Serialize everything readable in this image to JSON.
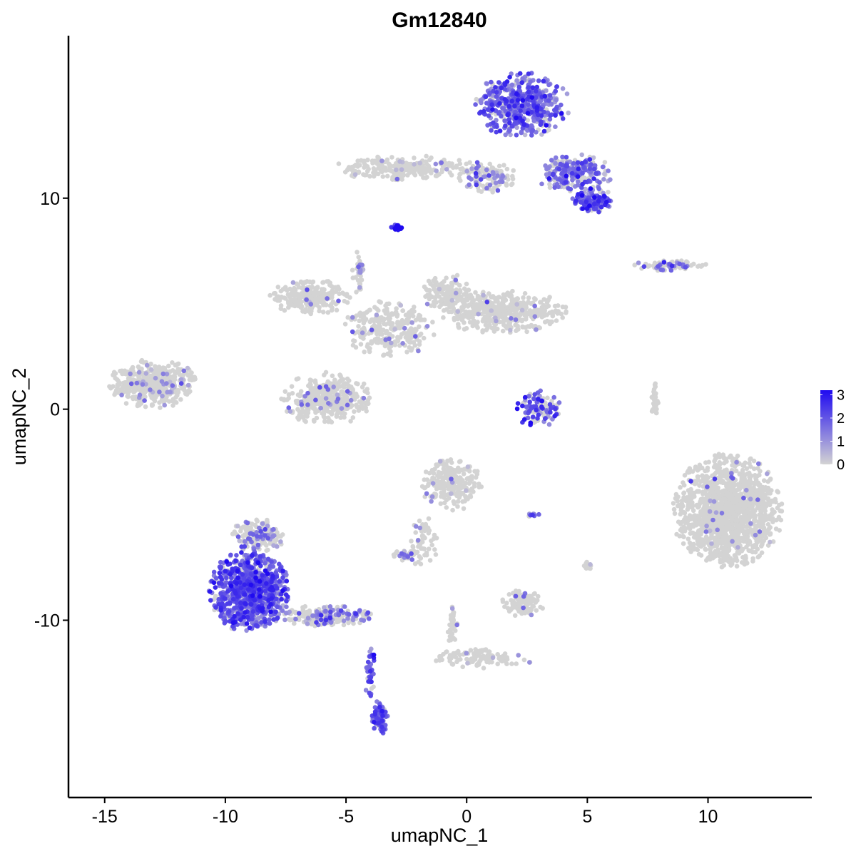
{
  "chart_data": {
    "type": "scatter",
    "title": "Gm12840",
    "xlabel": "umapNC_1",
    "ylabel": "umapNC_2",
    "xlim": [
      -16.5,
      14.3
    ],
    "ylim": [
      -18.4,
      17.7
    ],
    "x_ticks": [
      -15,
      -10,
      -5,
      0,
      5,
      10
    ],
    "x_tick_labels": [
      "-15",
      "-10",
      "-5",
      "0",
      "5",
      "10"
    ],
    "y_ticks": [
      -10,
      0,
      10
    ],
    "y_tick_labels": [
      "-10",
      "0",
      "10"
    ],
    "grid": false,
    "legend": {
      "placement": "right",
      "type": "colorbar",
      "min": 0,
      "max": 3.2,
      "ticks": [
        3,
        2,
        1,
        0
      ],
      "tick_labels": [
        "3",
        "2",
        "1",
        "0"
      ],
      "color_low": "#d3d3d3",
      "color_high": "#1f0af0"
    },
    "clusters": [
      {
        "name_hint": "top-right-upper",
        "cx": 2.3,
        "cy": 14.4,
        "rx": 1.9,
        "ry": 1.5,
        "n": 520,
        "expr": 1.7,
        "expr_frac": 0.85
      },
      {
        "name_hint": "top-right-arm",
        "cx": 4.5,
        "cy": 11.2,
        "rx": 1.6,
        "ry": 0.9,
        "n": 260,
        "expr": 1.5,
        "expr_frac": 0.65
      },
      {
        "name_hint": "top-right-lobe",
        "cx": 5.2,
        "cy": 9.9,
        "rx": 0.8,
        "ry": 0.6,
        "n": 120,
        "expr": 1.9,
        "expr_frac": 0.8
      },
      {
        "name_hint": "top-middle-strip",
        "cx": -2.5,
        "cy": 11.4,
        "rx": 3.0,
        "ry": 0.6,
        "n": 240,
        "expr": 1.0,
        "expr_frac": 0.08
      },
      {
        "name_hint": "top-right-link",
        "cx": 0.8,
        "cy": 11.0,
        "rx": 1.2,
        "ry": 0.7,
        "n": 120,
        "expr": 1.3,
        "expr_frac": 0.3
      },
      {
        "name_hint": "small-blue-blob",
        "cx": -2.9,
        "cy": 8.6,
        "rx": 0.25,
        "ry": 0.2,
        "n": 18,
        "expr": 3.0,
        "expr_frac": 1.0
      },
      {
        "name_hint": "right-thin-strip",
        "cx": 8.5,
        "cy": 6.8,
        "rx": 1.6,
        "ry": 0.25,
        "n": 70,
        "expr": 1.6,
        "expr_frac": 0.3
      },
      {
        "name_hint": "center-arm-left",
        "cx": -6.5,
        "cy": 5.3,
        "rx": 1.7,
        "ry": 0.8,
        "n": 240,
        "expr": 1.0,
        "expr_frac": 0.03
      },
      {
        "name_hint": "center-body",
        "cx": -3.2,
        "cy": 3.8,
        "rx": 1.8,
        "ry": 1.3,
        "n": 260,
        "expr": 1.2,
        "expr_frac": 0.06
      },
      {
        "name_hint": "center-arm-right",
        "cx": 1.5,
        "cy": 4.6,
        "rx": 2.6,
        "ry": 1.0,
        "n": 430,
        "expr": 1.0,
        "expr_frac": 0.04
      },
      {
        "name_hint": "center-arm-right-up",
        "cx": -0.8,
        "cy": 5.5,
        "rx": 1.0,
        "ry": 0.9,
        "n": 120,
        "expr": 1.0,
        "expr_frac": 0.03
      },
      {
        "name_hint": "center-lower-lobe",
        "cx": -5.8,
        "cy": 0.5,
        "rx": 1.8,
        "ry": 1.2,
        "n": 400,
        "expr": 1.2,
        "expr_frac": 0.06
      },
      {
        "name_hint": "center-spike",
        "cx": -4.5,
        "cy": 6.5,
        "rx": 0.25,
        "ry": 1.0,
        "n": 40,
        "expr": 1.2,
        "expr_frac": 0.2
      },
      {
        "name_hint": "left-lobe",
        "cx": -13.0,
        "cy": 1.2,
        "rx": 1.8,
        "ry": 1.1,
        "n": 420,
        "expr": 1.0,
        "expr_frac": 0.12
      },
      {
        "name_hint": "mid-small-ring",
        "cx": 3.0,
        "cy": 0.0,
        "rx": 0.9,
        "ry": 0.9,
        "n": 110,
        "expr": 2.0,
        "expr_frac": 0.55
      },
      {
        "name_hint": "thin-vertical",
        "cx": 7.8,
        "cy": 0.4,
        "rx": 0.15,
        "ry": 0.9,
        "n": 30,
        "expr": 1.0,
        "expr_frac": 0.0
      },
      {
        "name_hint": "big-right-lobe",
        "cx": 10.8,
        "cy": -4.8,
        "rx": 2.2,
        "ry": 2.6,
        "n": 1400,
        "expr": 1.0,
        "expr_frac": 0.02
      },
      {
        "name_hint": "mid-lower-upper",
        "cx": -0.6,
        "cy": -3.6,
        "rx": 1.2,
        "ry": 1.2,
        "n": 240,
        "expr": 1.2,
        "expr_frac": 0.05
      },
      {
        "name_hint": "mid-lower-arm",
        "cx": -1.8,
        "cy": -6.3,
        "rx": 0.6,
        "ry": 1.2,
        "n": 60,
        "expr": 1.2,
        "expr_frac": 0.1
      },
      {
        "name_hint": "mid-lower-foot",
        "cx": -2.5,
        "cy": -6.9,
        "rx": 0.5,
        "ry": 0.3,
        "n": 40,
        "expr": 1.4,
        "expr_frac": 0.3
      },
      {
        "name_hint": "lower-left-body",
        "cx": -9.0,
        "cy": -8.6,
        "rx": 1.6,
        "ry": 1.9,
        "n": 950,
        "expr": 1.9,
        "expr_frac": 0.8
      },
      {
        "name_hint": "lower-left-top",
        "cx": -8.6,
        "cy": -6.0,
        "rx": 1.1,
        "ry": 0.8,
        "n": 180,
        "expr": 1.3,
        "expr_frac": 0.25
      },
      {
        "name_hint": "lower-left-arm",
        "cx": -5.8,
        "cy": -9.8,
        "rx": 1.8,
        "ry": 0.5,
        "n": 200,
        "expr": 1.3,
        "expr_frac": 0.35
      },
      {
        "name_hint": "lower-left-tail",
        "cx": -4.0,
        "cy": -12.5,
        "rx": 0.2,
        "ry": 1.4,
        "n": 40,
        "expr": 2.0,
        "expr_frac": 0.8
      },
      {
        "name_hint": "lower-left-foot",
        "cx": -3.6,
        "cy": -14.6,
        "rx": 0.35,
        "ry": 0.8,
        "n": 90,
        "expr": 2.0,
        "expr_frac": 0.9
      },
      {
        "name_hint": "lower-mid-small",
        "cx": 2.3,
        "cy": -9.2,
        "rx": 0.9,
        "ry": 0.6,
        "n": 100,
        "expr": 1.2,
        "expr_frac": 0.08
      },
      {
        "name_hint": "lower-mid-strip",
        "cx": 0.6,
        "cy": -11.8,
        "rx": 2.2,
        "ry": 0.45,
        "n": 110,
        "expr": 1.2,
        "expr_frac": 0.05
      },
      {
        "name_hint": "lower-mid-stem",
        "cx": -0.6,
        "cy": -10.2,
        "rx": 0.2,
        "ry": 1.0,
        "n": 40,
        "expr": 1.2,
        "expr_frac": 0.03
      },
      {
        "name_hint": "small-right-dot",
        "cx": 5.0,
        "cy": -7.4,
        "rx": 0.2,
        "ry": 0.25,
        "n": 14,
        "expr": 1.4,
        "expr_frac": 0.3
      },
      {
        "name_hint": "small-mid-dot",
        "cx": 2.8,
        "cy": -5.0,
        "rx": 0.3,
        "ry": 0.1,
        "n": 10,
        "expr": 1.5,
        "expr_frac": 0.4
      }
    ]
  }
}
